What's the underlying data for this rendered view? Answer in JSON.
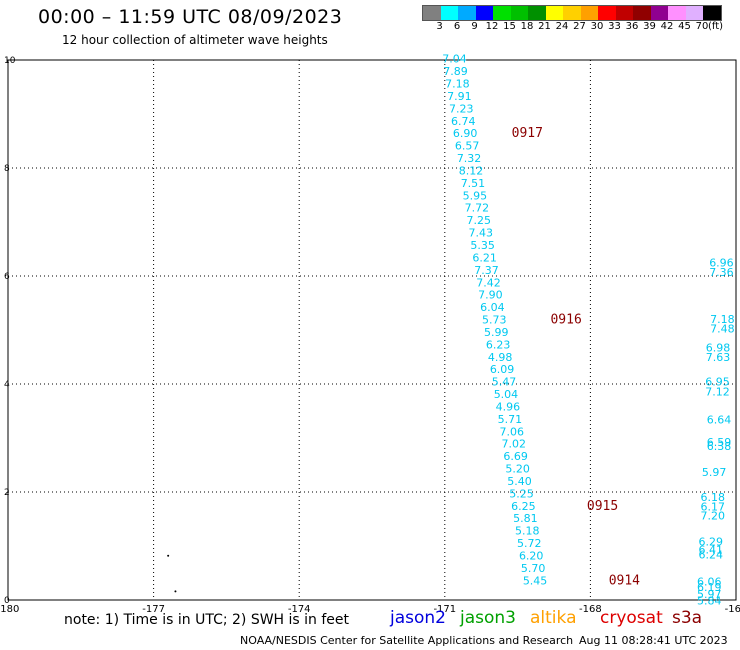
{
  "header": {
    "title": "00:00 – 11:59 UTC 08/09/2023",
    "subtitle": "12 hour collection of altimeter wave heights"
  },
  "legend": {
    "colors": [
      "#808080",
      "#00ffff",
      "#00aaff",
      "#0000ff",
      "#00e000",
      "#00c000",
      "#009000",
      "#ffff00",
      "#ffd000",
      "#ffa000",
      "#ff0000",
      "#c00000",
      "#900000",
      "#900090",
      "#ff90ff",
      "#e0b0ff",
      "#000000"
    ],
    "labels": [
      "3",
      "6",
      "9",
      "12",
      "15",
      "18",
      "21",
      "24",
      "27",
      "30",
      "33",
      "36",
      "39",
      "42",
      "45",
      "70",
      "(ft)"
    ]
  },
  "chart_data": {
    "type": "scatter",
    "xlim": [
      -180,
      -165
    ],
    "ylim": [
      0,
      10
    ],
    "x_ticks": [
      "-180",
      "-177",
      "-174",
      "-171",
      "-168",
      "-165"
    ],
    "y_ticks": [
      "0",
      "2",
      "4",
      "6",
      "8",
      "10"
    ],
    "grid": true,
    "value_color": "#00c8f0",
    "time_color": "#8b0000",
    "track": [
      {
        "lon": -170.8,
        "lat": 9.95,
        "swh": "7.04"
      },
      {
        "lon": -170.78,
        "lat": 9.72,
        "swh": "7.89"
      },
      {
        "lon": -170.74,
        "lat": 9.49,
        "swh": "7.18"
      },
      {
        "lon": -170.7,
        "lat": 9.26,
        "swh": "7.91"
      },
      {
        "lon": -170.66,
        "lat": 9.03,
        "swh": "7.23"
      },
      {
        "lon": -170.62,
        "lat": 8.8,
        "swh": "6.74"
      },
      {
        "lon": -170.58,
        "lat": 8.57,
        "swh": "6.90"
      },
      {
        "lon": -170.54,
        "lat": 8.34,
        "swh": "6.57"
      },
      {
        "lon": -170.5,
        "lat": 8.11,
        "swh": "7.32"
      },
      {
        "lon": -170.46,
        "lat": 7.88,
        "swh": "8.12"
      },
      {
        "lon": -170.42,
        "lat": 7.65,
        "swh": "7.51"
      },
      {
        "lon": -170.38,
        "lat": 7.42,
        "swh": "5.95"
      },
      {
        "lon": -170.34,
        "lat": 7.19,
        "swh": "7.72"
      },
      {
        "lon": -170.3,
        "lat": 6.96,
        "swh": "7.25"
      },
      {
        "lon": -170.26,
        "lat": 6.73,
        "swh": "7.43"
      },
      {
        "lon": -170.22,
        "lat": 6.5,
        "swh": "5.35"
      },
      {
        "lon": -170.18,
        "lat": 6.27,
        "swh": "6.21"
      },
      {
        "lon": -170.14,
        "lat": 6.04,
        "swh": "7.37"
      },
      {
        "lon": -170.1,
        "lat": 5.81,
        "swh": "7.42"
      },
      {
        "lon": -170.06,
        "lat": 5.58,
        "swh": "7.90"
      },
      {
        "lon": -170.02,
        "lat": 5.35,
        "swh": "6.04"
      },
      {
        "lon": -169.98,
        "lat": 5.12,
        "swh": "5.73"
      },
      {
        "lon": -169.94,
        "lat": 4.89,
        "swh": "5.99"
      },
      {
        "lon": -169.9,
        "lat": 4.66,
        "swh": "6.23"
      },
      {
        "lon": -169.86,
        "lat": 4.43,
        "swh": "4.98"
      },
      {
        "lon": -169.82,
        "lat": 4.2,
        "swh": "6.09"
      },
      {
        "lon": -169.78,
        "lat": 3.97,
        "swh": "5.47"
      },
      {
        "lon": -169.74,
        "lat": 3.74,
        "swh": "5.04"
      },
      {
        "lon": -169.7,
        "lat": 3.51,
        "swh": "4.96"
      },
      {
        "lon": -169.66,
        "lat": 3.28,
        "swh": "5.71"
      },
      {
        "lon": -169.62,
        "lat": 3.05,
        "swh": "7.06"
      },
      {
        "lon": -169.58,
        "lat": 2.82,
        "swh": "7.02"
      },
      {
        "lon": -169.54,
        "lat": 2.59,
        "swh": "6.69"
      },
      {
        "lon": -169.5,
        "lat": 2.36,
        "swh": "5.20"
      },
      {
        "lon": -169.46,
        "lat": 2.13,
        "swh": "5.40"
      },
      {
        "lon": -169.42,
        "lat": 1.9,
        "swh": "5.25"
      },
      {
        "lon": -169.38,
        "lat": 1.67,
        "swh": "6.25"
      },
      {
        "lon": -169.34,
        "lat": 1.44,
        "swh": "5.81"
      },
      {
        "lon": -169.3,
        "lat": 1.21,
        "swh": "5.18"
      },
      {
        "lon": -169.26,
        "lat": 0.98,
        "swh": "5.72"
      },
      {
        "lon": -169.22,
        "lat": 0.75,
        "swh": "6.20"
      },
      {
        "lon": -169.18,
        "lat": 0.52,
        "swh": "5.70"
      },
      {
        "lon": -169.14,
        "lat": 0.29,
        "swh": "5.45"
      }
    ],
    "times": [
      {
        "lon": -169.3,
        "lat": 8.57,
        "label": "0917"
      },
      {
        "lon": -168.5,
        "lat": 5.12,
        "label": "0916"
      },
      {
        "lon": -167.75,
        "lat": 1.67,
        "label": "0915"
      },
      {
        "lon": -167.3,
        "lat": 0.29,
        "label": "0914"
      }
    ],
    "right_track": [
      {
        "lon": -165.3,
        "lat": 6.18,
        "swh": "6.96"
      },
      {
        "lon": -165.3,
        "lat": 6.0,
        "swh": "7.36"
      },
      {
        "lon": -165.28,
        "lat": 5.13,
        "swh": "7.18"
      },
      {
        "lon": -165.28,
        "lat": 4.95,
        "swh": "7.48"
      },
      {
        "lon": -165.37,
        "lat": 4.6,
        "swh": "6.98"
      },
      {
        "lon": -165.37,
        "lat": 4.43,
        "swh": "7.63"
      },
      {
        "lon": -165.38,
        "lat": 3.97,
        "swh": "6.95"
      },
      {
        "lon": -165.38,
        "lat": 3.79,
        "swh": "7.12"
      },
      {
        "lon": -165.35,
        "lat": 3.27,
        "swh": "6.64"
      },
      {
        "lon": -165.35,
        "lat": 2.85,
        "swh": "6.59"
      },
      {
        "lon": -165.35,
        "lat": 2.78,
        "swh": "6.38"
      },
      {
        "lon": -165.45,
        "lat": 2.3,
        "swh": "5.97"
      },
      {
        "lon": -165.48,
        "lat": 1.83,
        "swh": "6.18"
      },
      {
        "lon": -165.48,
        "lat": 1.66,
        "swh": "6.17"
      },
      {
        "lon": -165.48,
        "lat": 1.49,
        "swh": "7.20"
      },
      {
        "lon": -165.52,
        "lat": 1.01,
        "swh": "6.29"
      },
      {
        "lon": -165.52,
        "lat": 0.86,
        "swh": "6.41"
      },
      {
        "lon": -165.52,
        "lat": 0.77,
        "swh": "6.24"
      },
      {
        "lon": -165.55,
        "lat": 0.27,
        "swh": "6.06"
      },
      {
        "lon": -165.55,
        "lat": 0.17,
        "swh": "6.19"
      },
      {
        "lon": -165.55,
        "lat": 0.04,
        "swh": "5.97"
      },
      {
        "lon": -165.55,
        "lat": -0.08,
        "swh": "5.84"
      }
    ],
    "dots": [
      {
        "lon": -176.7,
        "lat": 0.82
      },
      {
        "lon": -176.55,
        "lat": 0.16
      }
    ]
  },
  "note": {
    "text": "note:  1) Time is in UTC;  2) SWH is in feet",
    "satellites": [
      {
        "name": "jason2",
        "color": "#0000dd"
      },
      {
        "name": "jason3",
        "color": "#00a000"
      },
      {
        "name": "altika",
        "color": "#ffa000"
      },
      {
        "name": "cryosat",
        "color": "#dd0000"
      },
      {
        "name": "s3a",
        "color": "#8b0000"
      }
    ]
  },
  "footer": {
    "left": "NOAA/NESDIS Center for Satellite Applications and Research",
    "right": "Aug 11 08:28:41 UTC 2023"
  }
}
